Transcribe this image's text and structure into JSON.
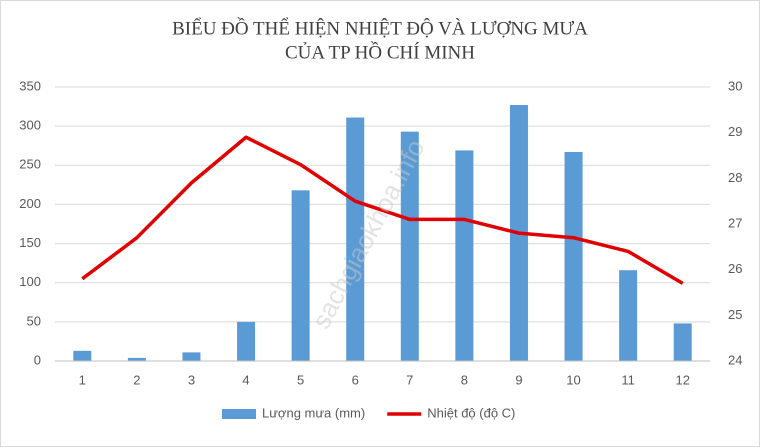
{
  "chart_data": {
    "type": "combo",
    "title": [
      "BIỂU ĐỒ THỂ HIỆN NHIỆT ĐỘ VÀ LƯỢNG MƯA",
      "CỦA TP HỒ CHÍ MINH"
    ],
    "watermark": "sachgiaokhoa.info",
    "categories": [
      "1",
      "2",
      "3",
      "4",
      "5",
      "6",
      "7",
      "8",
      "9",
      "10",
      "11",
      "12"
    ],
    "series": [
      {
        "name": "Lượng mưa (mm)",
        "type": "bar",
        "color": "#5b9bd5",
        "values": [
          13,
          4,
          11,
          50,
          218,
          311,
          293,
          269,
          327,
          267,
          116,
          48
        ]
      },
      {
        "name": "Nhiệt độ (độ C)",
        "type": "line",
        "axis": "y2",
        "color": "#e00000",
        "values": [
          25.8,
          26.7,
          27.9,
          28.9,
          28.3,
          27.5,
          27.1,
          27.1,
          26.8,
          26.7,
          26.4,
          25.7
        ]
      }
    ],
    "ylim": [
      0,
      350
    ],
    "yticks": [
      0,
      50,
      100,
      150,
      200,
      250,
      300,
      350
    ],
    "y2lim": [
      24,
      30
    ],
    "y2ticks": [
      24,
      25,
      26,
      27,
      28,
      29,
      30
    ],
    "grid": true,
    "legend": "bottom"
  }
}
